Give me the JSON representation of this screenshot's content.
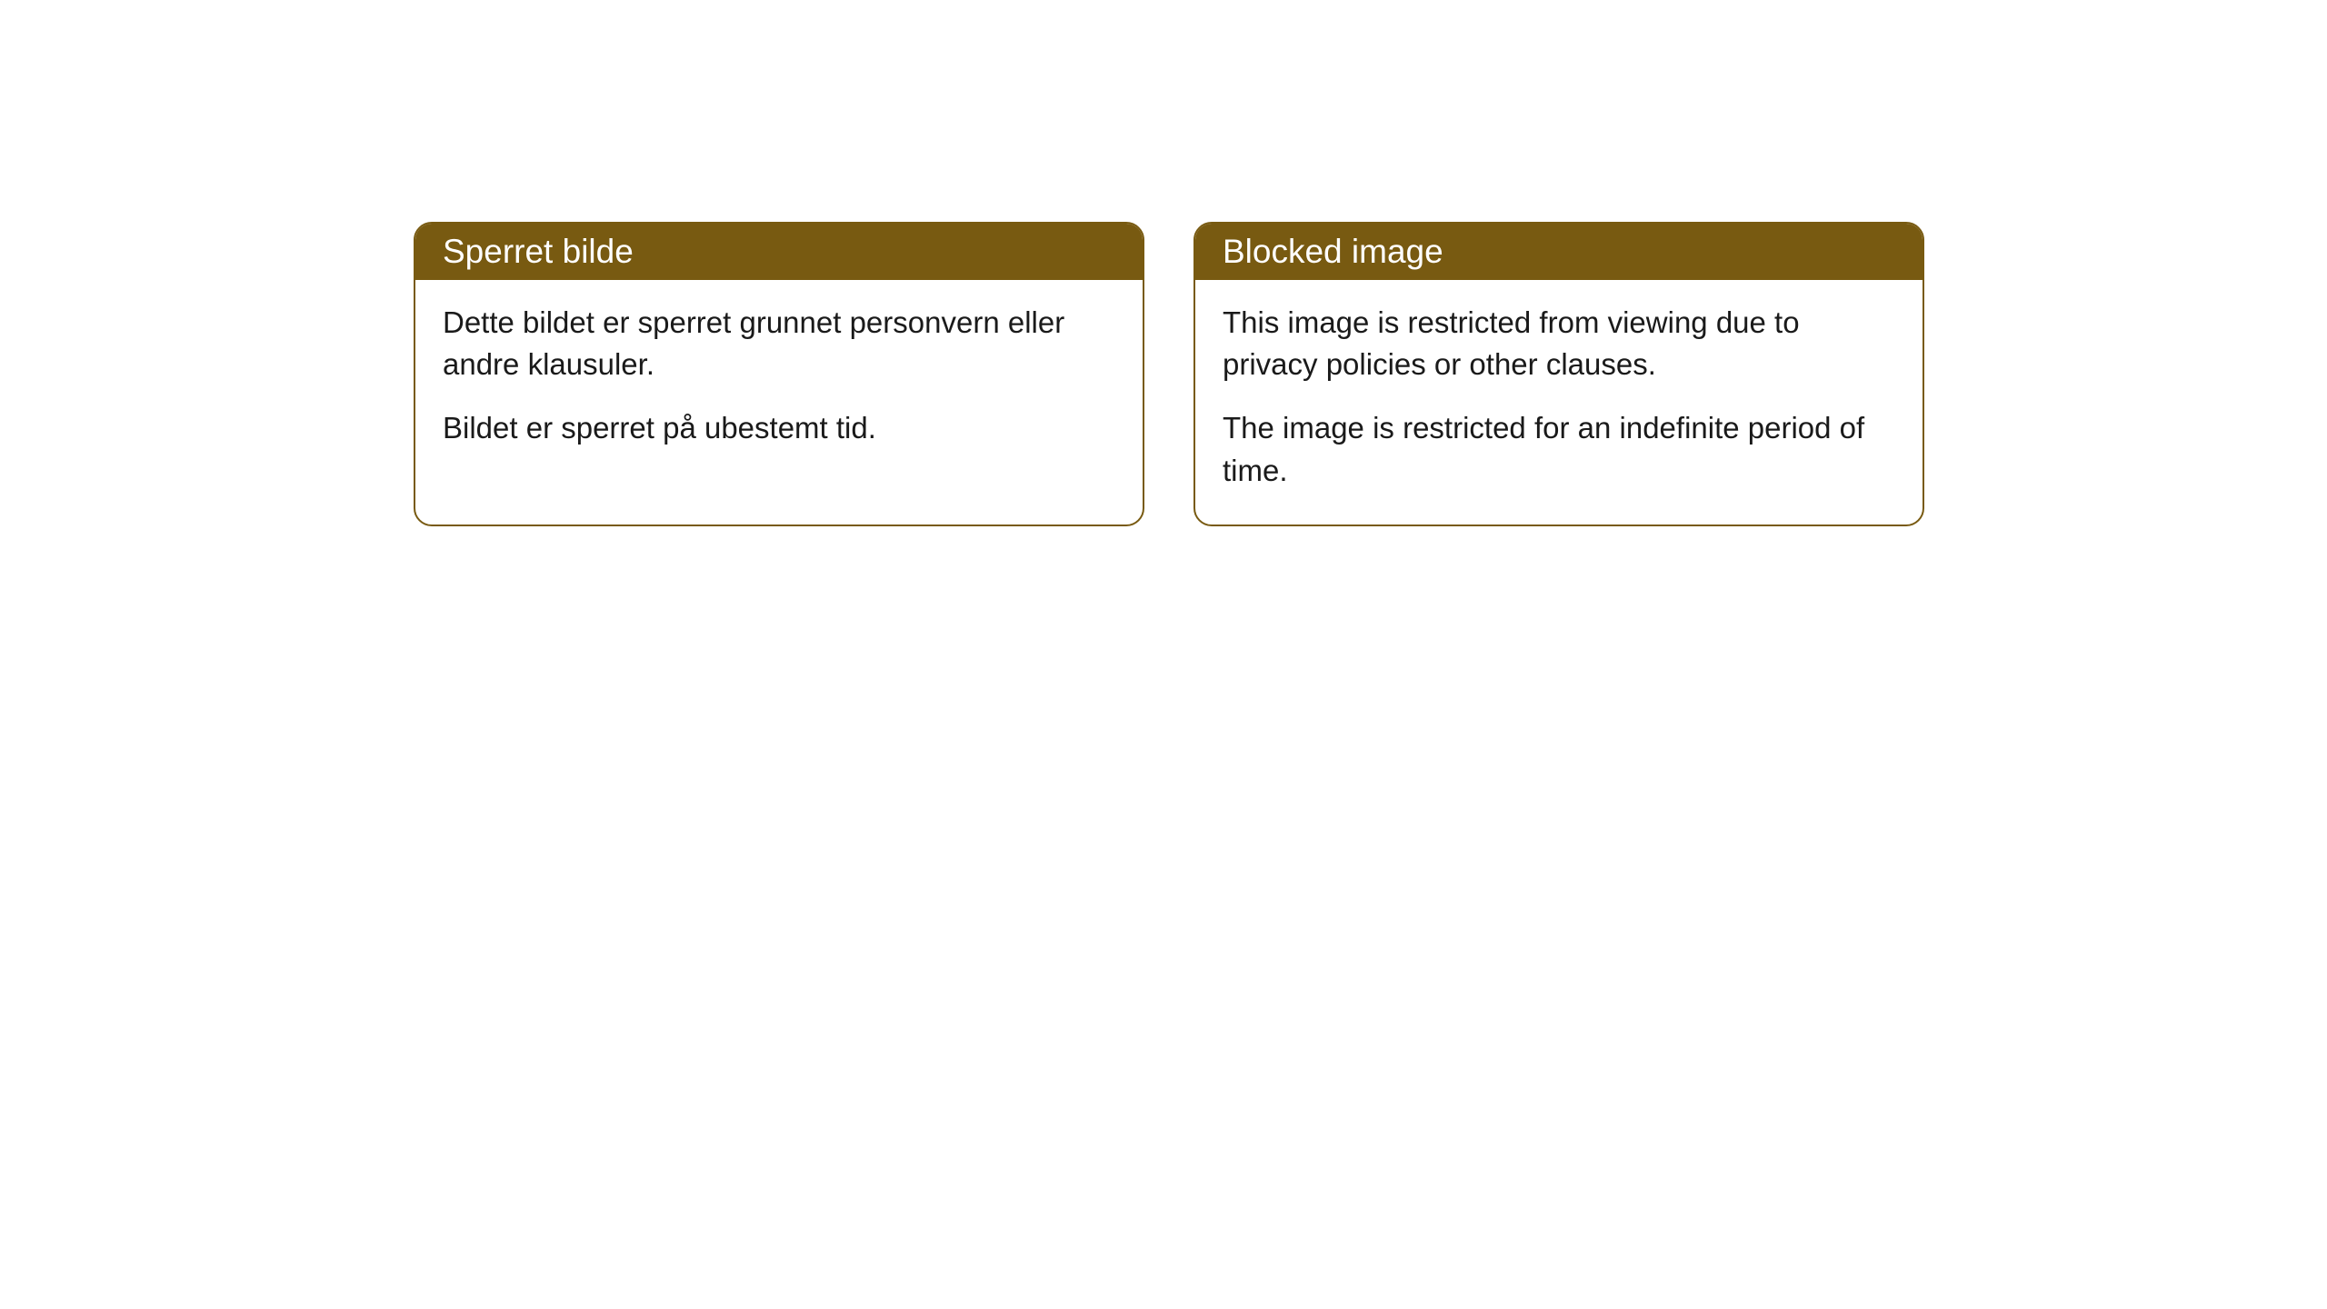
{
  "cards": [
    {
      "title": "Sperret bilde",
      "paragraph1": "Dette bildet er sperret grunnet personvern eller andre klausuler.",
      "paragraph2": "Bildet er sperret på ubestemt tid."
    },
    {
      "title": "Blocked image",
      "paragraph1": "This image is restricted from viewing due to privacy policies or other clauses.",
      "paragraph2": "The image is restricted for an indefinite period of time."
    }
  ],
  "style": {
    "header_background": "#785a11",
    "header_text_color": "#ffffff",
    "body_background": "#ffffff",
    "body_text_color": "#1a1a1a",
    "border_color": "#785a11",
    "border_radius": 20,
    "header_font_size": 37,
    "body_font_size": 33
  }
}
